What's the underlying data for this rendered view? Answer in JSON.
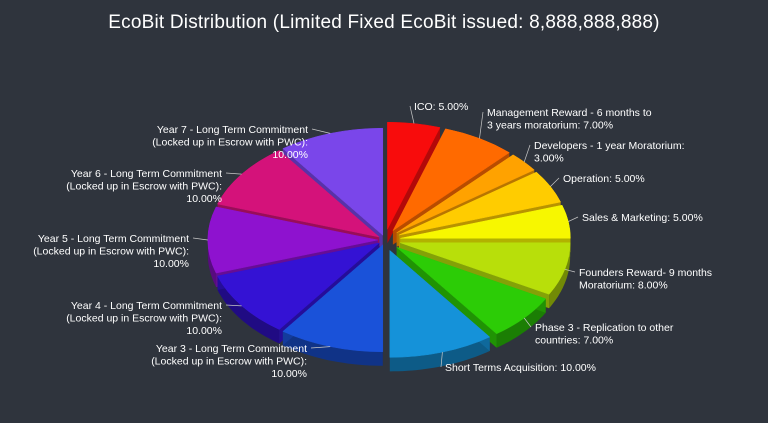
{
  "chart_data": {
    "type": "pie",
    "title": "EcoBit Distribution (Limited Fixed EcoBit issued: 8,888,888,888)",
    "slices": [
      {
        "label": [
          "ICO: 5.00%"
        ],
        "value": 5.0,
        "color": "#f80c0c"
      },
      {
        "label": [
          "Management Reward - 6 months to",
          "3 years moratorium: 7.00%"
        ],
        "value": 7.0,
        "color": "#ff6a00"
      },
      {
        "label": [
          "Developers - 1 year Moratorium:",
          "3.00%"
        ],
        "value": 3.0,
        "color": "#ffa200"
      },
      {
        "label": [
          "Operation: 5.00%"
        ],
        "value": 5.0,
        "color": "#ffcc00"
      },
      {
        "label": [
          "Sales & Marketing: 5.00%"
        ],
        "value": 5.0,
        "color": "#f7f700"
      },
      {
        "label": [
          "Founders Reward- 9 months",
          "Moratorium: 8.00%"
        ],
        "value": 8.0,
        "color": "#b8df0a"
      },
      {
        "label": [
          "Phase 3 - Replication to other",
          "countries: 7.00%"
        ],
        "value": 7.0,
        "color": "#2ccc06"
      },
      {
        "label": [
          "Short Terms Acquisition: 10.00%"
        ],
        "value": 10.0,
        "color": "#1592d9"
      },
      {
        "label": [
          "Year 3 - Long Term Commitment",
          "(Locked up in Escrow with PWC):",
          "10.00%"
        ],
        "value": 10.0,
        "color": "#1a52d9"
      },
      {
        "label": [
          "Year 4 - Long Term Commitment",
          "(Locked up in Escrow with PWC):",
          "10.00%"
        ],
        "value": 10.0,
        "color": "#3412d4"
      },
      {
        "label": [
          "Year 5 - Long Term Commitment",
          "(Locked up in Escrow with PWC):",
          "10.00%"
        ],
        "value": 10.0,
        "color": "#8e12cf"
      },
      {
        "label": [
          "Year 6 - Long Term Commitment",
          "(Locked up in Escrow with PWC):",
          "10.00%"
        ],
        "value": 10.0,
        "color": "#d4127a"
      },
      {
        "label": [
          "Year 7 - Long Term Commitment",
          "(Locked up in Escrow with PWC):",
          "10.00%"
        ],
        "value": 10.0,
        "color": "#7a46ea"
      }
    ]
  }
}
